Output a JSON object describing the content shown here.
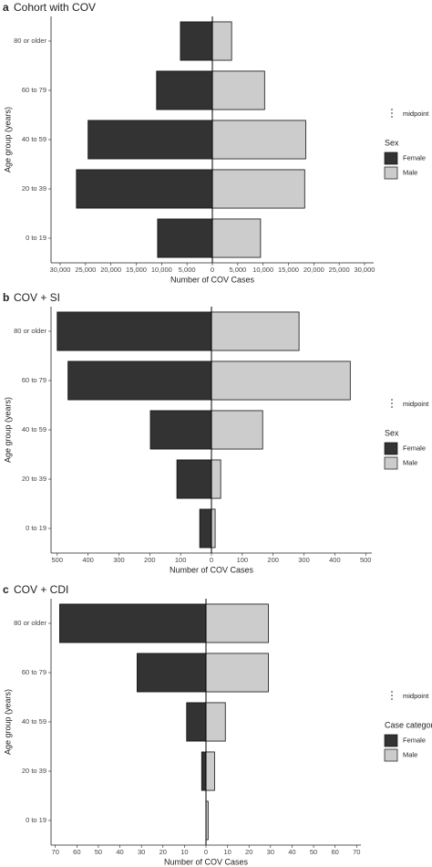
{
  "chart_data": [
    {
      "type": "bar",
      "orientation": "horizontal",
      "panel": "a",
      "title": "Cohort with COV",
      "x_label": "Number of COV Cases",
      "y_label": "Age group (years)",
      "categories": [
        "80 or older",
        "60 to 79",
        "40 to 59",
        "20 to 39",
        "0 to 19"
      ],
      "series": [
        {
          "name": "Female",
          "color": "#333333",
          "values": [
            -6300,
            -11000,
            -24500,
            -26800,
            -10800
          ]
        },
        {
          "name": "Male",
          "color": "#cccccc",
          "values": [
            3800,
            10300,
            18400,
            18200,
            9500
          ]
        }
      ],
      "legend_title": "Sex",
      "midpoint_label": "midpoint",
      "xlim": [
        -31800,
        31800
      ],
      "xticks": [
        {
          "value": -30000,
          "label": "30,000"
        },
        {
          "value": -25000,
          "label": "25,000"
        },
        {
          "value": -20000,
          "label": "20,000"
        },
        {
          "value": -15000,
          "label": "15,000"
        },
        {
          "value": -10000,
          "label": "10,000"
        },
        {
          "value": -5000,
          "label": "5,000"
        },
        0,
        {
          "value": 5000,
          "label": "5,000"
        },
        {
          "value": 10000,
          "label": "10,000"
        },
        {
          "value": 15000,
          "label": "15,000"
        },
        {
          "value": 20000,
          "label": "20,000"
        },
        {
          "value": 25000,
          "label": "25,000"
        },
        {
          "value": 30000,
          "label": "30,000"
        }
      ]
    },
    {
      "type": "bar",
      "orientation": "horizontal",
      "panel": "b",
      "title": "COV + SI",
      "x_label": "Number of COV Cases",
      "y_label": "Age group (years)",
      "categories": [
        "80 or older",
        "60 to 79",
        "40 to 59",
        "20 to 39",
        "0 to 19"
      ],
      "series": [
        {
          "name": "Female",
          "color": "#333333",
          "values": [
            -500,
            -465,
            -198,
            -112,
            -38
          ]
        },
        {
          "name": "Male",
          "color": "#cccccc",
          "values": [
            284,
            450,
            166,
            30,
            12
          ]
        }
      ],
      "legend_title": "Sex",
      "midpoint_label": "midpoint",
      "xlim": [
        -520,
        520
      ],
      "xticks": [
        {
          "value": -500,
          "label": "500"
        },
        {
          "value": -400,
          "label": "400"
        },
        {
          "value": -300,
          "label": "300"
        },
        {
          "value": -200,
          "label": "200"
        },
        {
          "value": -100,
          "label": "100"
        },
        0,
        100,
        200,
        300,
        400,
        500
      ]
    },
    {
      "type": "bar",
      "orientation": "horizontal",
      "panel": "c",
      "title": "COV + CDI",
      "x_label": "Number of COV Cases",
      "y_label": "Age group (years)",
      "categories": [
        "80 or older",
        "60 to 79",
        "40 to 59",
        "20 to 39",
        "0 to 19"
      ],
      "series": [
        {
          "name": "Female",
          "color": "#333333",
          "values": [
            -68,
            -32,
            -9,
            -2,
            0
          ]
        },
        {
          "name": "Male",
          "color": "#cccccc",
          "values": [
            29,
            29,
            9,
            4,
            1
          ]
        }
      ],
      "legend_title": "Case category",
      "midpoint_label": "midpoint",
      "xlim": [
        -72,
        72
      ],
      "xticks": [
        {
          "value": -70,
          "label": "70"
        },
        {
          "value": -60,
          "label": "60"
        },
        {
          "value": -50,
          "label": "50"
        },
        {
          "value": -40,
          "label": "40"
        },
        {
          "value": -30,
          "label": "30"
        },
        {
          "value": -20,
          "label": "20"
        },
        {
          "value": -10,
          "label": "10"
        },
        0,
        10,
        20,
        30,
        40,
        50,
        60,
        70
      ]
    }
  ]
}
